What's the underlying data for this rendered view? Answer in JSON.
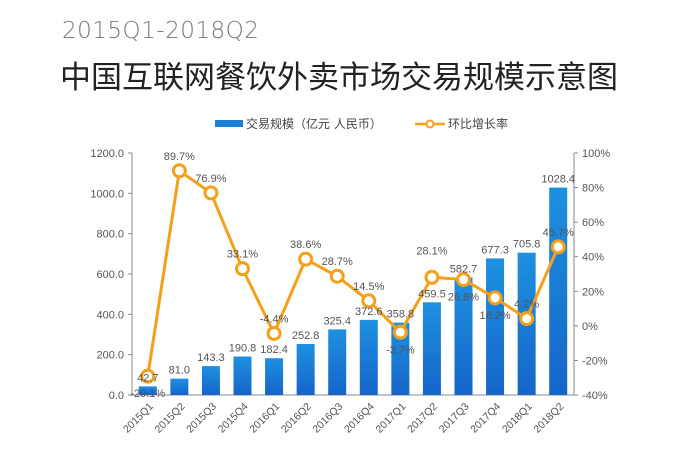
{
  "header": {
    "subtitle": "2015Q1-2018Q2",
    "title": "中国互联网餐饮外卖市场交易规模示意图"
  },
  "colors": {
    "bar": "#1a7fd6",
    "bar_dark": "#1565c8",
    "line": "#f5a01a",
    "axis": "#888888",
    "text": "#555555"
  },
  "chart_data": {
    "type": "bar+line",
    "categories": [
      "2015Q1",
      "2015Q2",
      "2015Q3",
      "2015Q4",
      "2016Q1",
      "2016Q2",
      "2016Q3",
      "2016Q4",
      "2017Q1",
      "2017Q2",
      "2017Q3",
      "2017Q4",
      "2018Q1",
      "2018Q2"
    ],
    "series": [
      {
        "name": "交易规模（亿元 人民币）",
        "type": "bar",
        "axis": "left",
        "values": [
          42.7,
          81.0,
          143.3,
          190.8,
          182.4,
          252.8,
          325.4,
          372.6,
          358.8,
          459.5,
          582.7,
          677.3,
          705.8,
          1028.4
        ],
        "labels": [
          "42.7",
          "81.0",
          "143.3",
          "190.8",
          "182.4",
          "252.8",
          "325.4",
          "372.6",
          "358.8",
          "459.5",
          "582.7",
          "677.3",
          "705.8",
          "1028.4"
        ]
      },
      {
        "name": "环比增长率",
        "type": "line",
        "axis": "right",
        "values": [
          -29.1,
          89.7,
          76.9,
          33.1,
          -4.4,
          38.6,
          28.7,
          14.5,
          -3.7,
          28.1,
          26.8,
          16.2,
          4.2,
          45.7
        ],
        "labels": [
          "-29.1%",
          "89.7%",
          "76.9%",
          "33.1%",
          "-4.4%",
          "38.6%",
          "28.7%",
          "14.5%",
          "-3.7%",
          "28.1%",
          "26.8%",
          "16.2%",
          "4.2%",
          "45.7%"
        ]
      }
    ],
    "y_left": {
      "range": [
        0,
        1200
      ],
      "ticks": [
        "0.0",
        "200.0",
        "400.0",
        "600.0",
        "800.0",
        "1000.0",
        "1200.0"
      ]
    },
    "y_right": {
      "range": [
        -40,
        100
      ],
      "ticks": [
        "-40%",
        "-20%",
        "0%",
        "20%",
        "40%",
        "60%",
        "80%",
        "100%"
      ]
    },
    "legend_placement": "top",
    "grid": false
  }
}
